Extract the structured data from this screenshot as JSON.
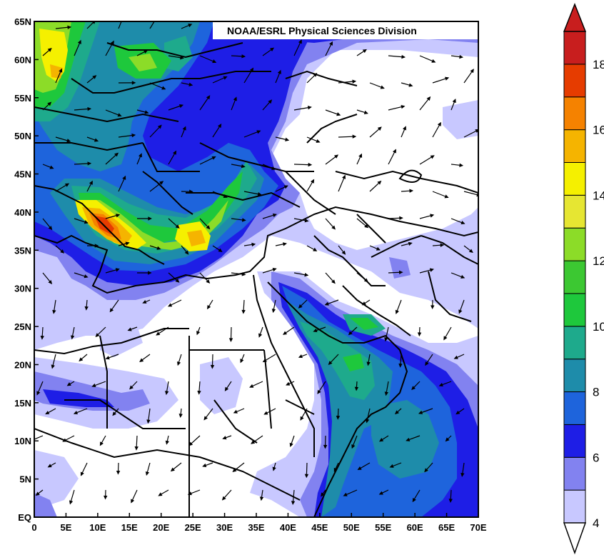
{
  "credit": "NOAA/ESRL Physical Sciences Division",
  "axes": {
    "lat_labels": [
      "65N",
      "60N",
      "55N",
      "50N",
      "45N",
      "40N",
      "35N",
      "30N",
      "25N",
      "20N",
      "15N",
      "10N",
      "5N",
      "EQ"
    ],
    "lon_labels": [
      "0",
      "5E",
      "10E",
      "15E",
      "20E",
      "25E",
      "30E",
      "35E",
      "40E",
      "45E",
      "50E",
      "55E",
      "60E",
      "65E",
      "70E"
    ],
    "lat_range": [
      0,
      65
    ],
    "lon_range": [
      0,
      70
    ]
  },
  "colorbar": {
    "labels": [
      "4",
      "6",
      "8",
      "10",
      "12",
      "14",
      "16",
      "18"
    ],
    "bins": [
      {
        "min": 4,
        "max": 5,
        "color": "#c8c8ff"
      },
      {
        "min": 5,
        "max": 6,
        "color": "#8282f0"
      },
      {
        "min": 6,
        "max": 7,
        "color": "#1e1ee6"
      },
      {
        "min": 7,
        "max": 8,
        "color": "#1e64dc"
      },
      {
        "min": 8,
        "max": 9,
        "color": "#1e8caa"
      },
      {
        "min": 9,
        "max": 10,
        "color": "#1eaa8c"
      },
      {
        "min": 10,
        "max": 11,
        "color": "#1ec83c"
      },
      {
        "min": 11,
        "max": 12,
        "color": "#3cc832"
      },
      {
        "min": 12,
        "max": 13,
        "color": "#8cdc28"
      },
      {
        "min": 13,
        "max": 14,
        "color": "#e6e632"
      },
      {
        "min": 14,
        "max": 15,
        "color": "#f5f000"
      },
      {
        "min": 15,
        "max": 16,
        "color": "#f5b400"
      },
      {
        "min": 16,
        "max": 17,
        "color": "#f58200"
      },
      {
        "min": 17,
        "max": 18,
        "color": "#e63c00"
      },
      {
        "min": 18,
        "max": 19,
        "color": "#c81e1e"
      }
    ],
    "overflow_color": "#c81e1e",
    "underflow_color": "#ffffff"
  }
}
